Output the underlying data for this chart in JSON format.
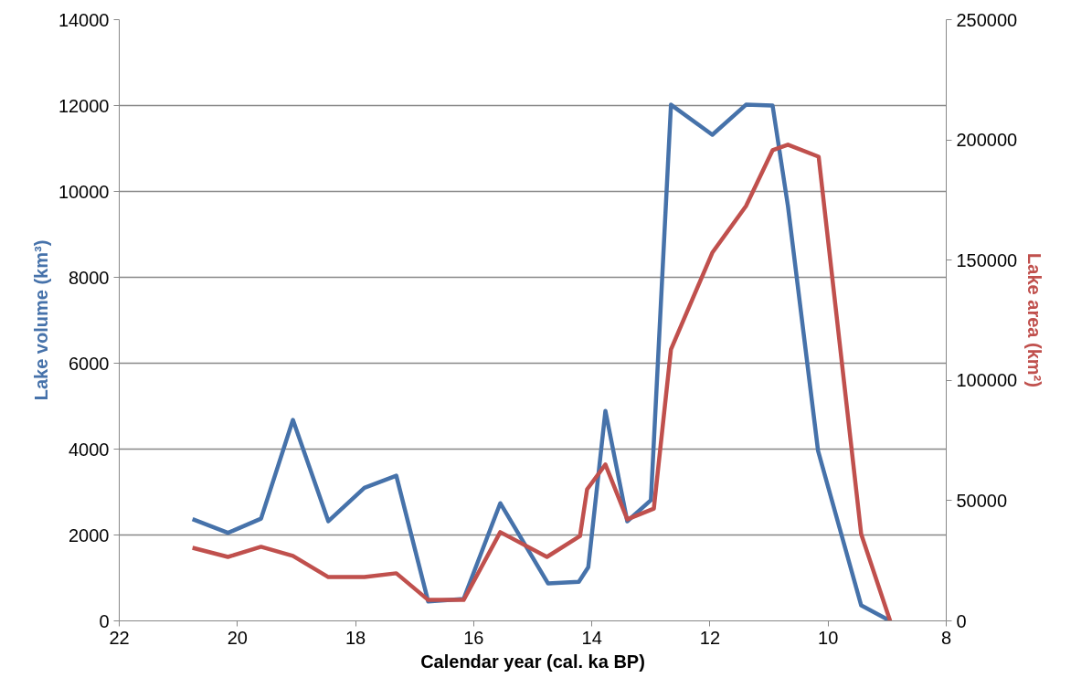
{
  "chart_data": {
    "type": "line",
    "xlabel": "Calendar year (cal. ka BP)",
    "ylabel": "Lake volume (km³)",
    "y2label": "Lake area (km²)",
    "xlim": [
      22,
      8
    ],
    "xticks": [
      22,
      20,
      18,
      16,
      14,
      12,
      10,
      8
    ],
    "ylim": [
      0,
      14000
    ],
    "yticks": [
      0,
      2000,
      4000,
      6000,
      8000,
      10000,
      12000,
      14000
    ],
    "y2lim": [
      0,
      250000
    ],
    "y2ticks": [
      0,
      50000,
      100000,
      150000,
      200000,
      250000
    ],
    "grid": "y",
    "line_style": "solid",
    "series": [
      {
        "color": "#4672aa",
        "x": [
          20.76,
          20.16,
          19.6,
          19.06,
          18.46,
          17.85,
          17.31,
          16.77,
          16.17,
          15.55,
          14.74,
          14.22,
          14.06,
          13.77,
          13.4,
          13.0,
          12.66,
          11.96,
          11.39,
          10.94,
          10.68,
          10.17,
          9.44,
          8.95
        ],
        "values": [
          2370,
          2050,
          2380,
          4680,
          2320,
          3100,
          3380,
          450,
          510,
          2740,
          870,
          910,
          1250,
          4890,
          2320,
          2810,
          12020,
          11320,
          12020,
          12000,
          9660,
          3960,
          360,
          0
        ]
      },
      {
        "color": "#c0504d",
        "axis": "y2",
        "x": [
          20.76,
          20.16,
          19.6,
          19.06,
          18.46,
          17.85,
          17.31,
          16.77,
          16.17,
          15.55,
          14.76,
          14.2,
          14.08,
          13.77,
          13.4,
          12.95,
          12.66,
          11.96,
          11.39,
          10.94,
          10.68,
          10.16,
          9.44,
          8.95
        ],
        "values": [
          30400,
          26600,
          30800,
          27000,
          18200,
          18200,
          19800,
          8700,
          8700,
          36900,
          26600,
          35300,
          54700,
          65000,
          42200,
          46700,
          112900,
          153100,
          172500,
          195700,
          198000,
          193000,
          36100,
          0
        ]
      }
    ]
  }
}
